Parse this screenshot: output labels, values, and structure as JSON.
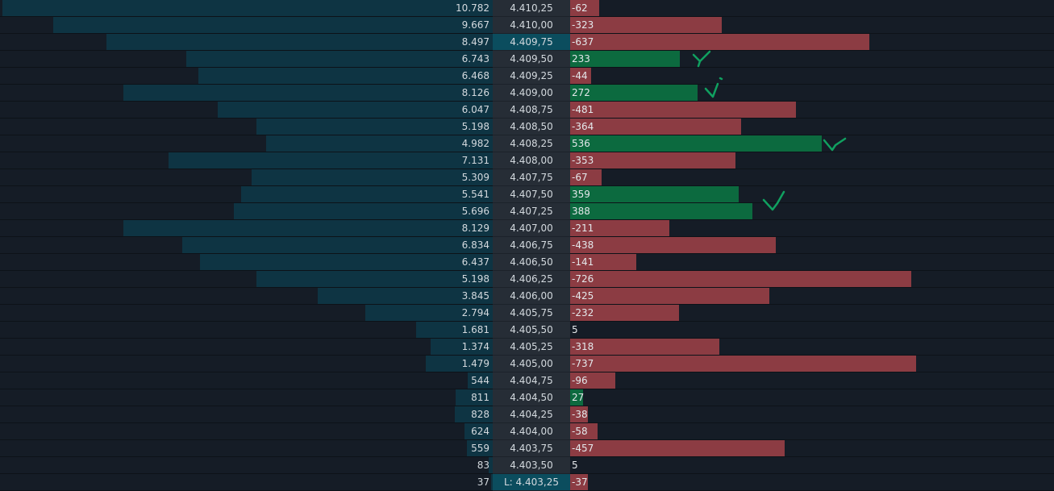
{
  "ladder": {
    "colors": {
      "volume_bar": "#0e3443",
      "price_highlight": "#0b4d5e",
      "delta_negative": "#8c3c43",
      "delta_positive": "#0c6a3f",
      "annotation": "#10a060"
    },
    "highlighted_price": "4.409,75",
    "last_price_label": "L: 4.403,25",
    "volume_scale_max": 10782,
    "delta_scale_max": 737,
    "rows": [
      {
        "volume_label": "10.782",
        "volume": 10782,
        "price": "4.410,25",
        "delta_label": "-62",
        "delta": -62
      },
      {
        "volume_label": "9.667",
        "volume": 9667,
        "price": "4.410,00",
        "delta_label": "-323",
        "delta": -323
      },
      {
        "volume_label": "8.497",
        "volume": 8497,
        "price": "4.409,75",
        "delta_label": "-637",
        "delta": -637
      },
      {
        "volume_label": "6.743",
        "volume": 6743,
        "price": "4.409,50",
        "delta_label": "233",
        "delta": 233
      },
      {
        "volume_label": "6.468",
        "volume": 6468,
        "price": "4.409,25",
        "delta_label": "-44",
        "delta": -44
      },
      {
        "volume_label": "8.126",
        "volume": 8126,
        "price": "4.409,00",
        "delta_label": "272",
        "delta": 272
      },
      {
        "volume_label": "6.047",
        "volume": 6047,
        "price": "4.408,75",
        "delta_label": "-481",
        "delta": -481
      },
      {
        "volume_label": "5.198",
        "volume": 5198,
        "price": "4.408,50",
        "delta_label": "-364",
        "delta": -364
      },
      {
        "volume_label": "4.982",
        "volume": 4982,
        "price": "4.408,25",
        "delta_label": "536",
        "delta": 536
      },
      {
        "volume_label": "7.131",
        "volume": 7131,
        "price": "4.408,00",
        "delta_label": "-353",
        "delta": -353
      },
      {
        "volume_label": "5.309",
        "volume": 5309,
        "price": "4.407,75",
        "delta_label": "-67",
        "delta": -67
      },
      {
        "volume_label": "5.541",
        "volume": 5541,
        "price": "4.407,50",
        "delta_label": "359",
        "delta": 359
      },
      {
        "volume_label": "5.696",
        "volume": 5696,
        "price": "4.407,25",
        "delta_label": "388",
        "delta": 388
      },
      {
        "volume_label": "8.129",
        "volume": 8129,
        "price": "4.407,00",
        "delta_label": "-211",
        "delta": -211
      },
      {
        "volume_label": "6.834",
        "volume": 6834,
        "price": "4.406,75",
        "delta_label": "-438",
        "delta": -438
      },
      {
        "volume_label": "6.437",
        "volume": 6437,
        "price": "4.406,50",
        "delta_label": "-141",
        "delta": -141
      },
      {
        "volume_label": "5.198",
        "volume": 5198,
        "price": "4.406,25",
        "delta_label": "-726",
        "delta": -726
      },
      {
        "volume_label": "3.845",
        "volume": 3845,
        "price": "4.406,00",
        "delta_label": "-425",
        "delta": -425
      },
      {
        "volume_label": "2.794",
        "volume": 2794,
        "price": "4.405,75",
        "delta_label": "-232",
        "delta": -232
      },
      {
        "volume_label": "1.681",
        "volume": 1681,
        "price": "4.405,50",
        "delta_label": "5",
        "delta": 5
      },
      {
        "volume_label": "1.374",
        "volume": 1374,
        "price": "4.405,25",
        "delta_label": "-318",
        "delta": -318
      },
      {
        "volume_label": "1.479",
        "volume": 1479,
        "price": "4.405,00",
        "delta_label": "-737",
        "delta": -737
      },
      {
        "volume_label": "544",
        "volume": 544,
        "price": "4.404,75",
        "delta_label": "-96",
        "delta": -96
      },
      {
        "volume_label": "811",
        "volume": 811,
        "price": "4.404,50",
        "delta_label": "27",
        "delta": 27
      },
      {
        "volume_label": "828",
        "volume": 828,
        "price": "4.404,25",
        "delta_label": "-38",
        "delta": -38
      },
      {
        "volume_label": "624",
        "volume": 624,
        "price": "4.404,00",
        "delta_label": "-58",
        "delta": -58
      },
      {
        "volume_label": "559",
        "volume": 559,
        "price": "4.403,75",
        "delta_label": "-457",
        "delta": -457
      },
      {
        "volume_label": "83",
        "volume": 83,
        "price": "4.403,50",
        "delta_label": "5",
        "delta": 5
      },
      {
        "volume_label": "37",
        "volume": 37,
        "price": "4.403,25",
        "delta_label": "-37",
        "delta": -37
      }
    ]
  }
}
